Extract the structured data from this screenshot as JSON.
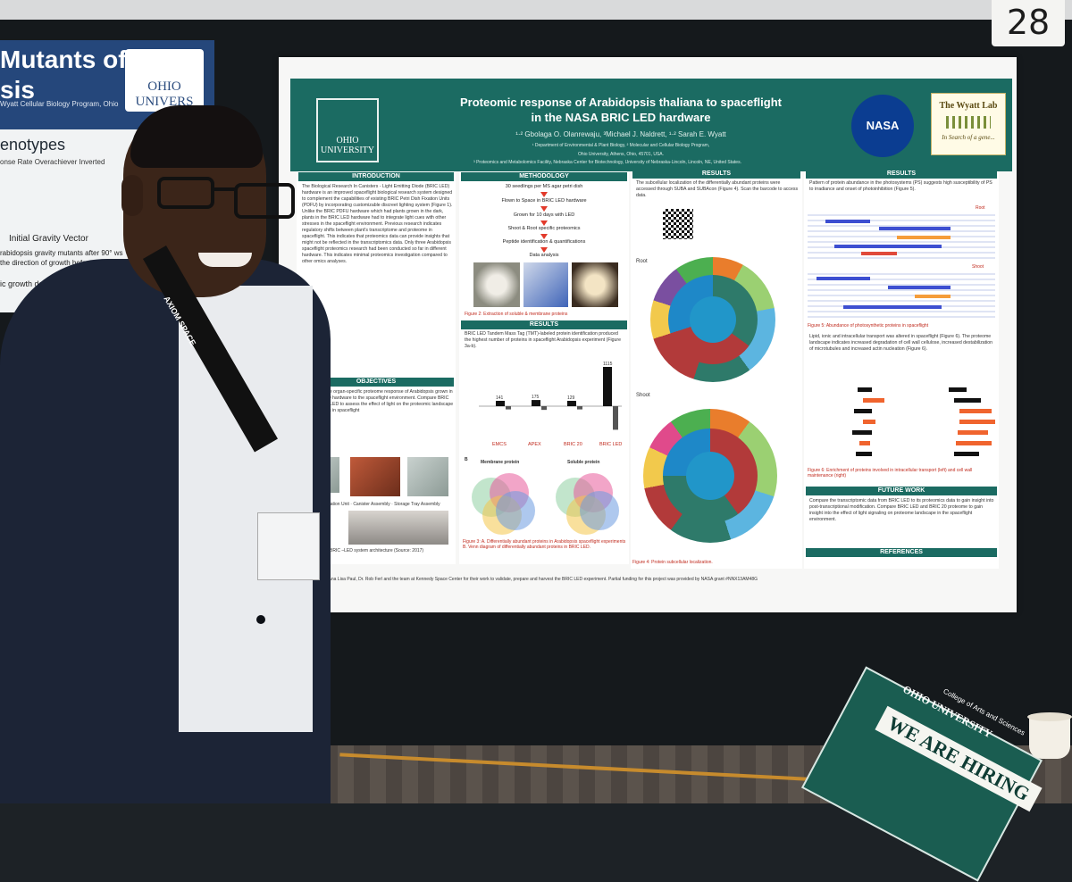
{
  "booth_number": "28",
  "left_poster": {
    "title": "Mutants of sis",
    "subtitle": "Wyatt Cellular Biology Program, Ohio",
    "logo_text": "OHIO UNIVERS",
    "heading": "enotypes",
    "phenotype_row": "onse Rate   Overachiever   Inverted",
    "gravity_label": "Initial Gravity Vector",
    "text_a": "rabidopsis gravity mutants after 90° ws the direction of growth before",
    "text_b": "ic growth demonstrat ble 1)"
  },
  "poster": {
    "logo_text": "OHIO UNIVERSITY",
    "title_line1": "Proteomic response of Arabidopsis thaliana to spaceflight",
    "title_line2": "in the NASA BRIC LED hardware",
    "authors": "¹·² Gbolaga O. Olanrewaju, ³Michael J. Naldrett, ¹·² Sarah E. Wyatt",
    "affil1": "¹ Department of Environmental & Plant Biology, ² Molecular and Cellular Biology Program,",
    "affil2": "Ohio University, Athens, Ohio, 45701, USA.",
    "affil3": "³ Proteomics and Metabolomics Facility, Nebraska Center for Biotechnology, University of Nebraska-Lincoln, Lincoln, NE, United States.",
    "nasa_logo": "NASA",
    "wyatt_logo_line1": "The Wyatt Lab",
    "wyatt_logo_line2": "In Search of a gene...",
    "sections": {
      "introduction": "INTRODUCTION",
      "objectives": "OBJECTIVES",
      "methodology": "METHODOLOGY",
      "results_mid": "RESULTS",
      "results_a": "RESULTS",
      "results_b": "RESULTS",
      "future_work": "FUTURE WORK",
      "references": "REFERENCES"
    },
    "intro_text": "The Biological Research In Canisters - Light Emitting Diode (BRIC LED) hardware is an improved spaceflight biological research system designed to complement the capabilities of existing BRIC Petri Dish Fixation Units (PDFU) by incorporating customizable discreet lighting system (Figure 1). Unlike the BRIC PDFU hardware which had plants grown in the dark, plants in the BRIC LED hardware had to integrate light cues with other stresses in the spaceflight environment. Previous research indicates regulatory shifts between plant's transcriptome and proteome in spaceflight. This indicates that proteomics data can provide insights that might not be reflected in the transcriptomics data. Only three Arabidopsis spaceflight proteomics research had been conducted so far in different hardware. This indicates minimal proteomics investigation compared to other omics analyses.",
    "objectives_text": "Investigate the organ-specific proteome response of Arabidopsis grown in the BRIC LED hardware to the spaceflight environment. Compare BRIC 20 and BRIC LED to assess the effect of light on the proteomic landscape of Arabidopsis in spaceflight",
    "figure1_labels": [
      "Petri Dish Fixation Unit",
      "Canister Assembly",
      "Storage Tray Assembly"
    ],
    "figure1_caption": "Figure 1: The BRIC –LED system architecture (Source: 2017)",
    "method_steps": [
      "30 seedlings per MS agar petri dish",
      "Flown to Space in BRIC LED hardware",
      "Grown for 10 days with LED",
      "Shoot & Root specific proteomics",
      "Peptide identification & quantifications",
      "Data analysis"
    ],
    "figure2_caption": "Figure 2: Extraction of soluble & membrane proteins",
    "results_mid_text": "BRIC LED Tandem Mass Tag (TMT)-labeled protein identification produced the highest number of proteins in spaceflight Arabidopsis experiment (Figure 3a-b).",
    "bar_groups": [
      "EMCS",
      "APEX",
      "BRIC 20",
      "BRIC LED"
    ],
    "venn_labels": [
      "Membrane protein",
      "Soluble protein"
    ],
    "figure3_caption": "Figure 3: A. Differentially abundant proteins in Arabidopsis spaceflight experiments B. Venn diagram of differentially abundant proteins in BRIC LED.",
    "results_a_text": "The subcellular localization of the differentially abundant proteins were accessed through SUBA and SUBAcon (Figure 4). Scan the barcode to access data.",
    "donut_labels": [
      "Root",
      "Shoot"
    ],
    "figure4_caption": "Figure 4: Protein subcellular localization.",
    "results_b_text": "Pattern of protein abundance in the photosystems (PS) suggests high susceptibility of PS to irradiance and onset of photoinhibition (Figure 5).",
    "heatmap_labels": [
      "Root",
      "Shoot"
    ],
    "figure5_caption": "Figure 5: Abundance of photosynthetic proteins in spaceflight",
    "results_b_text2": "Lipid, ionic and intracellular transport was altered in spaceflight (Figure 6). The proteome landscape indicates increased degradation of cell wall cellulose, increased destabilization of microtubules and increased actin nucleation (Figure 6).",
    "figure6_caption": "Figure 6: Enrichment of proteins involved in intracellular transport (left) and cell wall maintenance (right)",
    "future_text": "Compare the transcriptomic data from BRIC LED to its proteomics data to gain insight into post-transcriptional modification. Compare BRIC LED and BRIC 20 proteome to gain insight into the effect of light signaling on proteome landscape in the spaceflight environment.",
    "footer": "Dr. Ana Lisa Paul, Dr. Rob Ferl and the team at Kennedy Space Center for their work to validate, prepare and harvest the BRIC LED experiment. Partial funding for this project was provided by NASA grant #NNX13AM48G"
  },
  "lanyard_text": "AXIOM SPACE",
  "sign": {
    "brand": "OHIO UNIVERSITY",
    "college": "College of Arts and Sciences",
    "hiring": "WE ARE HIRING"
  },
  "colors": {
    "poster_header": "#1b6b62",
    "arrow": "#e23a2b",
    "left_poster_header": "#25477b"
  },
  "chart_data": [
    {
      "type": "bar",
      "categories": [
        "EMCS",
        "APEX",
        "BRIC 20",
        "BRIC LED"
      ],
      "values": [
        141,
        175,
        129,
        1115
      ],
      "title": "",
      "xlabel": "",
      "ylabel": ""
    }
  ]
}
